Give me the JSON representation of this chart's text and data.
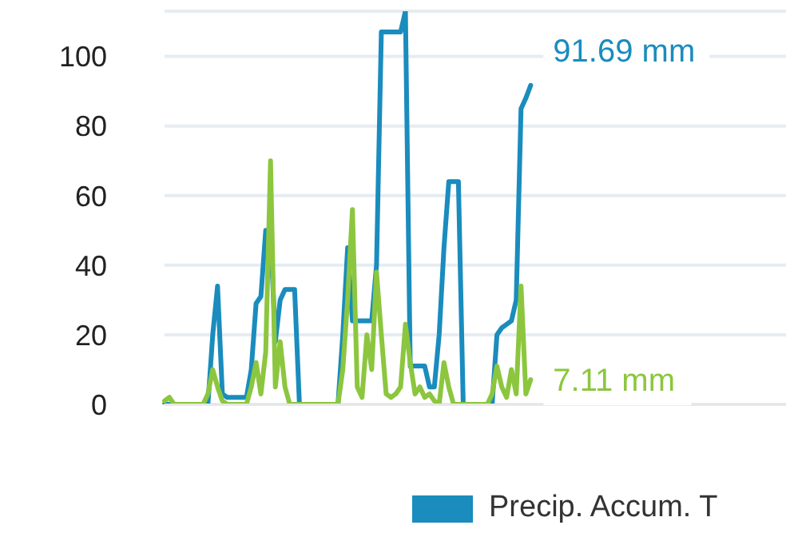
{
  "chart_data": {
    "type": "line",
    "categories": [
      null,
      null,
      null,
      null,
      null,
      null,
      null,
      null,
      null,
      null,
      null,
      null,
      null,
      null,
      null,
      null,
      null,
      null,
      null,
      null,
      null,
      null,
      null,
      null,
      null,
      null,
      null,
      null,
      null,
      null,
      null,
      null,
      null,
      null,
      null,
      null,
      null,
      null,
      null,
      null,
      null,
      null,
      null,
      null,
      null,
      null,
      null,
      null,
      null,
      null,
      null,
      null,
      null,
      null,
      null,
      null,
      null,
      null,
      null,
      null,
      null,
      null,
      null,
      null,
      null,
      null,
      null,
      null,
      null,
      null,
      null,
      null,
      null,
      null,
      null,
      null,
      null,
      null,
      null,
      null,
      null,
      null,
      null,
      null,
      null,
      null,
      null,
      null,
      null,
      null,
      null,
      null,
      null,
      null,
      null,
      null,
      null,
      null,
      null,
      null,
      null,
      null,
      null,
      null,
      null,
      null,
      null,
      null,
      null,
      null,
      null,
      null,
      null,
      null,
      null,
      null,
      null,
      null,
      null,
      null,
      null,
      null,
      null,
      null,
      null,
      null,
      null,
      null,
      null,
      null
    ],
    "series": [
      {
        "name": "Precip. Accum. T",
        "color": "#1a8cbd",
        "values": [
          0,
          0,
          0,
          0,
          0,
          0,
          0,
          0,
          0,
          0,
          20,
          34,
          3,
          2,
          2,
          2,
          2,
          2,
          10,
          29,
          31,
          50,
          50,
          18,
          30,
          33,
          33,
          33,
          0,
          0,
          0,
          0,
          0,
          0,
          0,
          0,
          0,
          20,
          45,
          24,
          24,
          24,
          24,
          24,
          40,
          107,
          107,
          107,
          107,
          107,
          113,
          11,
          11,
          11,
          11,
          5,
          5,
          20,
          45,
          64,
          64,
          64,
          0,
          0,
          0,
          0,
          0,
          0,
          0,
          20,
          22,
          23,
          24,
          30,
          85,
          88,
          91.69,
          null,
          null,
          null,
          null,
          null,
          null,
          null,
          null,
          null,
          null,
          null,
          null,
          null,
          null,
          null,
          null,
          null,
          null,
          null,
          null,
          null,
          null,
          null,
          null,
          null,
          null,
          null,
          null,
          null,
          null,
          null,
          null,
          null,
          null,
          null,
          null,
          null,
          null,
          null,
          null,
          null,
          null,
          null,
          null,
          null,
          null,
          null,
          null,
          null,
          null,
          null,
          null,
          null
        ],
        "value_labels": [
          null,
          null,
          null,
          null,
          null,
          null,
          null,
          null,
          null,
          null,
          null,
          null,
          null,
          null,
          null,
          null,
          null,
          null,
          null,
          null,
          null,
          null,
          null,
          null,
          null,
          null,
          null,
          null,
          null,
          null,
          null,
          null,
          null,
          null,
          null,
          null,
          null,
          null,
          null,
          null,
          null,
          null,
          null,
          null,
          null,
          null,
          null,
          null,
          null,
          null,
          null,
          null,
          null,
          null,
          null,
          null,
          null,
          null,
          null,
          null,
          null,
          null,
          null,
          null,
          null,
          null,
          null,
          null,
          null,
          null,
          null,
          null,
          null,
          null,
          null,
          null,
          "91.69 mm",
          null,
          null,
          null,
          null,
          null,
          null,
          null,
          null,
          null,
          null,
          null,
          null,
          null,
          null,
          null,
          null,
          null,
          null,
          null,
          null,
          null,
          null,
          null,
          null,
          null,
          null,
          null,
          null,
          null,
          null,
          null,
          null,
          null,
          null,
          null,
          null,
          null,
          null,
          null,
          null,
          null,
          null,
          null,
          null,
          null,
          null,
          null,
          null,
          null,
          null,
          null,
          null,
          null
        ]
      },
      {
        "color": "#8cc63f",
        "values": [
          1,
          2,
          0,
          0,
          0,
          0,
          0,
          0,
          0,
          3,
          10,
          5,
          1,
          0,
          0,
          0,
          0,
          0,
          5,
          12,
          3,
          15,
          70,
          5,
          18,
          5,
          0,
          0,
          0,
          0,
          0,
          0,
          0,
          0,
          0,
          0,
          0,
          10,
          30,
          56,
          5,
          2,
          20,
          10,
          38,
          20,
          3,
          2,
          3,
          5,
          23,
          12,
          3,
          5,
          2,
          3,
          1,
          0,
          12,
          5,
          0,
          0,
          0,
          0,
          0,
          0,
          0,
          0,
          3,
          11,
          5,
          2,
          10,
          3,
          34,
          3,
          7.11,
          null,
          null,
          null,
          null,
          null,
          null,
          null,
          null,
          null,
          null,
          null,
          null,
          null,
          null,
          null,
          null,
          null,
          null,
          null,
          null,
          null,
          null,
          null,
          null,
          null,
          null,
          null,
          null,
          null,
          null,
          null,
          null,
          null,
          null,
          null,
          null,
          null,
          null,
          null,
          null,
          null,
          null,
          null,
          null,
          null,
          null,
          null,
          null,
          null,
          null,
          null,
          null,
          null
        ],
        "value_labels": [
          null,
          null,
          null,
          null,
          null,
          null,
          null,
          null,
          null,
          null,
          null,
          null,
          null,
          null,
          null,
          null,
          null,
          null,
          null,
          null,
          null,
          null,
          null,
          null,
          null,
          null,
          null,
          null,
          null,
          null,
          null,
          null,
          null,
          null,
          null,
          null,
          null,
          null,
          null,
          null,
          null,
          null,
          null,
          null,
          null,
          null,
          null,
          null,
          null,
          null,
          null,
          null,
          null,
          null,
          null,
          null,
          null,
          null,
          null,
          null,
          null,
          null,
          null,
          null,
          null,
          null,
          null,
          null,
          null,
          null,
          null,
          null,
          null,
          null,
          null,
          null,
          "7.11 mm",
          null,
          null,
          null,
          null,
          null,
          null,
          null,
          null,
          null,
          null,
          null,
          null,
          null,
          null,
          null,
          null,
          null,
          null,
          null,
          null,
          null,
          null,
          null,
          null,
          null,
          null,
          null,
          null,
          null,
          null,
          null,
          null,
          null,
          null,
          null,
          null,
          null,
          null,
          null,
          null,
          null,
          null,
          null,
          null,
          null,
          null,
          null,
          null,
          null,
          null,
          null,
          null,
          null
        ]
      }
    ],
    "ylim": [
      0,
      113
    ],
    "yticks": [
      0,
      20,
      40,
      60,
      80,
      100
    ],
    "grid": "y",
    "legend": "bottom",
    "marker": "none",
    "line_style": "solid",
    "tick_labels": "y"
  }
}
